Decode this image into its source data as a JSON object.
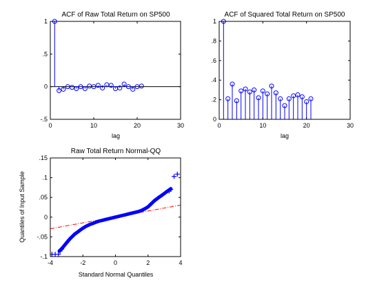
{
  "window": {
    "background": "#ffffff"
  },
  "chart_data": [
    {
      "id": "acf_raw",
      "type": "stem",
      "title": "ACF of Raw Total Return on SP500",
      "xlabel": "lag",
      "ylabel": "",
      "xlim": [
        0,
        30
      ],
      "ylim": [
        -0.5,
        1
      ],
      "xticks": [
        0,
        10,
        20,
        30
      ],
      "yticks": [
        -0.5,
        0,
        0.5,
        1
      ],
      "baseline": 0,
      "grid": false,
      "color": "#0000ff",
      "series": [
        {
          "x": [
            1,
            2,
            3,
            4,
            5,
            6,
            7,
            8,
            9,
            10,
            11,
            12,
            13,
            14,
            15,
            16,
            17,
            18,
            19,
            20,
            21
          ],
          "y": [
            1.0,
            -0.06,
            -0.04,
            0.0,
            -0.01,
            -0.03,
            0.0,
            -0.03,
            0.01,
            0.0,
            0.02,
            -0.02,
            0.03,
            0.02,
            -0.03,
            -0.02,
            0.04,
            0.0,
            -0.04,
            0.0,
            0.01
          ]
        }
      ]
    },
    {
      "id": "acf_sq",
      "type": "stem",
      "title": "ACF of Squared Total Return on SP500",
      "xlabel": "lag",
      "ylabel": "",
      "xlim": [
        0,
        30
      ],
      "ylim": [
        0,
        1
      ],
      "xticks": [
        0,
        10,
        20,
        30
      ],
      "yticks": [
        0,
        0.2,
        0.4,
        0.6,
        0.8,
        1
      ],
      "baseline": 0,
      "grid": false,
      "color": "#0000ff",
      "series": [
        {
          "x": [
            1,
            2,
            3,
            4,
            5,
            6,
            7,
            8,
            9,
            10,
            11,
            12,
            13,
            14,
            15,
            16,
            17,
            18,
            19,
            20,
            21
          ],
          "y": [
            1.0,
            0.21,
            0.36,
            0.19,
            0.29,
            0.31,
            0.28,
            0.3,
            0.22,
            0.29,
            0.26,
            0.34,
            0.27,
            0.21,
            0.14,
            0.21,
            0.24,
            0.25,
            0.23,
            0.18,
            0.21
          ]
        }
      ]
    },
    {
      "id": "qq",
      "type": "scatter",
      "title": "Raw Total Return Normal-QQ",
      "xlabel": "Standard Normal Quantiles",
      "ylabel": "Quantiles of Input Sample",
      "xlim": [
        -4,
        4
      ],
      "ylim": [
        -0.1,
        0.15
      ],
      "xticks": [
        -4,
        -2,
        0,
        2,
        4
      ],
      "yticks": [
        -0.1,
        -0.05,
        0,
        0.05,
        0.1,
        0.15
      ],
      "grid": false,
      "marker": "+",
      "marker_color": "#0000ff",
      "reference_line": {
        "style": "dash-dot",
        "color": "#ff0000",
        "slope": 0.0075,
        "intercept": 0.0005
      },
      "distribution_curve": {
        "x": [
          -3.45,
          -3.3,
          -3.2,
          -3.1,
          -3.0,
          -2.9,
          -2.8,
          -2.7,
          -2.6,
          -2.5,
          -2.4,
          -2.3,
          -2.2,
          -2.1,
          -2.0,
          -1.8,
          -1.6,
          -1.4,
          -1.2,
          -1.0,
          -0.8,
          -0.6,
          -0.4,
          -0.2,
          0.0,
          0.2,
          0.4,
          0.6,
          0.8,
          1.0,
          1.2,
          1.4,
          1.6,
          1.8,
          2.0,
          2.1,
          2.2,
          2.3,
          2.4,
          2.5,
          2.6,
          2.7,
          2.8,
          2.9,
          3.0,
          3.1,
          3.2,
          3.3,
          3.4
        ],
        "y": [
          -0.086,
          -0.08,
          -0.075,
          -0.07,
          -0.065,
          -0.06,
          -0.055,
          -0.051,
          -0.047,
          -0.043,
          -0.04,
          -0.037,
          -0.034,
          -0.031,
          -0.028,
          -0.023,
          -0.019,
          -0.016,
          -0.013,
          -0.01,
          -0.008,
          -0.006,
          -0.004,
          -0.002,
          0.0,
          0.002,
          0.004,
          0.006,
          0.008,
          0.01,
          0.012,
          0.014,
          0.017,
          0.021,
          0.026,
          0.03,
          0.034,
          0.038,
          0.042,
          0.045,
          0.048,
          0.051,
          0.054,
          0.057,
          0.06,
          0.063,
          0.066,
          0.069,
          0.072
        ]
      },
      "outliers": {
        "x": [
          -3.9,
          -3.7,
          -3.5,
          -3.4,
          -3.3,
          3.3,
          3.4,
          3.6,
          3.8
        ],
        "y": [
          -0.094,
          -0.094,
          -0.094,
          -0.086,
          -0.081,
          0.066,
          0.07,
          0.103,
          0.109
        ]
      }
    }
  ]
}
